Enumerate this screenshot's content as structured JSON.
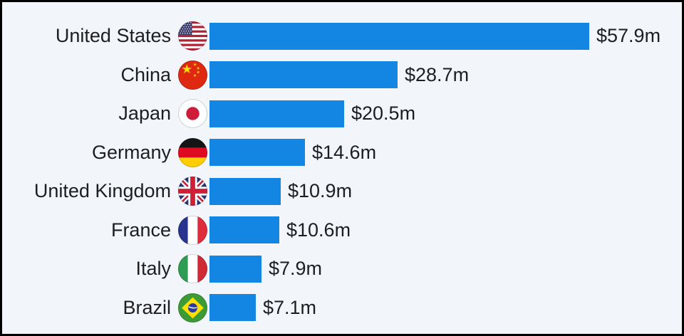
{
  "page": {
    "background_color": "#f2f6fa",
    "border_color": "#000000",
    "text_color": "#1b1e23"
  },
  "chart_data": {
    "type": "bar",
    "orientation": "horizontal",
    "title": "",
    "xlabel": "",
    "ylabel": "",
    "unit": "million USD",
    "xlim": [
      0,
      62
    ],
    "grid": false,
    "legend": false,
    "bar_color": "#1386e4",
    "categories": [
      "United States",
      "China",
      "Japan",
      "Germany",
      "United Kingdom",
      "France",
      "Italy",
      "Brazil"
    ],
    "values": [
      57.9,
      28.7,
      20.5,
      14.6,
      10.9,
      10.6,
      7.9,
      7.1
    ],
    "value_labels": [
      "$57.9m",
      "$28.7m",
      "$20.5m",
      "$14.6m",
      "$10.9m",
      "$10.6m",
      "$7.9m",
      "$7.1m"
    ],
    "flag_icons": [
      "us-flag-icon",
      "china-flag-icon",
      "japan-flag-icon",
      "germany-flag-icon",
      "uk-flag-icon",
      "france-flag-icon",
      "italy-flag-icon",
      "brazil-flag-icon"
    ]
  }
}
